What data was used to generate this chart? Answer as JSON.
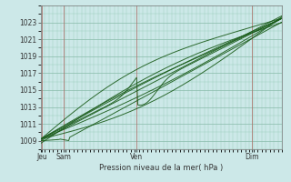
{
  "title": "Pression niveau de la mer( hPa )",
  "bg_color": "#cce8e8",
  "plot_bg_color": "#cce8e8",
  "grid_color_minor": "#99ccbb",
  "grid_color_major": "#88bbaa",
  "line_color": "#1a5c1a",
  "tick_color": "#333333",
  "vline_color": "#cc3333",
  "yticks": [
    1009,
    1011,
    1013,
    1015,
    1017,
    1019,
    1021,
    1023
  ],
  "ylim": [
    1008.2,
    1024.8
  ],
  "xlim": [
    0.0,
    1.0
  ],
  "x_labels": [
    [
      "Jeu",
      0.005
    ],
    [
      "Sam",
      0.095
    ],
    [
      "Ven",
      0.395
    ],
    [
      "Dim",
      0.875
    ]
  ],
  "vline_positions": [
    0.005,
    0.095,
    0.395,
    0.875
  ]
}
